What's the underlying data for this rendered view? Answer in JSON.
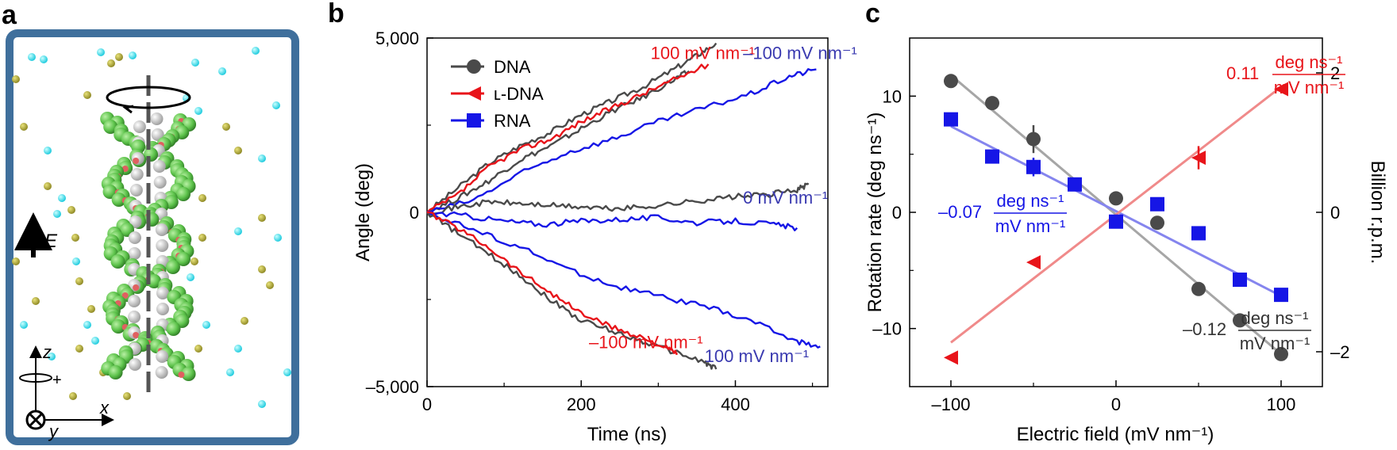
{
  "figure": {
    "panels": [
      {
        "letter": "a",
        "description_labels": {
          "field": "E",
          "z": "z",
          "x": "x",
          "y": "y",
          "plus": "+"
        }
      },
      {
        "letter": "b",
        "chart_data_ref": 0
      },
      {
        "letter": "c",
        "chart_data_ref": 1
      }
    ]
  },
  "chart_data": [
    {
      "type": "line",
      "xlabel": "Time (ns)",
      "ylabel": "Angle (deg)",
      "xlim": [
        0,
        520
      ],
      "ylim": [
        -5000,
        5000
      ],
      "xticks": [
        0,
        200,
        400
      ],
      "xtick_labels": [
        "0",
        "200",
        "400"
      ],
      "yticks": [
        -5000,
        0,
        5000
      ],
      "ytick_labels": [
        "–5,000",
        "0",
        "5,000"
      ],
      "legend": {
        "placement": "top-left",
        "entries": [
          {
            "label": "DNA",
            "color": "#4a4a4a",
            "marker": "circle"
          },
          {
            "label": "ʟ-DNA",
            "color": "#e8141a",
            "marker": "triangle-left"
          },
          {
            "label": "RNA",
            "color": "#1616e6",
            "marker": "square"
          }
        ]
      },
      "series": [
        {
          "name": "DNA +100",
          "color": "#4a4a4a",
          "x": [
            0,
            40,
            80,
            120,
            160,
            200,
            240,
            280,
            320,
            350,
            375
          ],
          "y": [
            0,
            700,
            1400,
            1900,
            2300,
            2800,
            3200,
            3600,
            4100,
            4500,
            4850
          ]
        },
        {
          "name": "DNA +100 b",
          "color": "#4a4a4a",
          "x": [
            0,
            40,
            80,
            120,
            160,
            200,
            240,
            280,
            320,
            340
          ],
          "y": [
            0,
            400,
            900,
            1500,
            1900,
            2400,
            2900,
            3300,
            3800,
            4050
          ]
        },
        {
          "name": "L-DNA -100",
          "color": "#e8141a",
          "x": [
            0,
            40,
            80,
            120,
            160,
            200,
            240,
            280,
            320,
            365
          ],
          "y": [
            0,
            500,
            1300,
            1800,
            2100,
            2600,
            3000,
            3400,
            3800,
            4250
          ]
        },
        {
          "name": "RNA -100",
          "color": "#1616e6",
          "x": [
            0,
            60,
            120,
            180,
            240,
            300,
            360,
            420,
            470,
            505
          ],
          "y": [
            0,
            350,
            1100,
            1700,
            2100,
            2600,
            3000,
            3400,
            3900,
            4100
          ]
        },
        {
          "name": "DNA 0",
          "color": "#4a4a4a",
          "x": [
            0,
            40,
            80,
            120,
            160,
            200,
            240,
            280,
            320,
            360,
            400,
            440,
            480,
            495
          ],
          "y": [
            0,
            150,
            300,
            250,
            200,
            150,
            100,
            150,
            250,
            350,
            450,
            500,
            650,
            800
          ]
        },
        {
          "name": "RNA 0",
          "color": "#1616e6",
          "x": [
            0,
            50,
            100,
            150,
            200,
            250,
            300,
            350,
            400,
            450,
            480
          ],
          "y": [
            0,
            -100,
            -250,
            -350,
            -250,
            -200,
            -150,
            -300,
            -250,
            -350,
            -450
          ]
        },
        {
          "name": "RNA +100",
          "color": "#1616e6",
          "x": [
            0,
            60,
            120,
            180,
            240,
            300,
            360,
            420,
            480,
            510
          ],
          "y": [
            0,
            -500,
            -1000,
            -1600,
            -2100,
            -2400,
            -2700,
            -3100,
            -3700,
            -3850
          ]
        },
        {
          "name": "DNA -100",
          "color": "#4a4a4a",
          "x": [
            0,
            40,
            80,
            120,
            160,
            200,
            240,
            280,
            320,
            360,
            375
          ],
          "y": [
            0,
            -600,
            -1200,
            -1800,
            -2500,
            -3100,
            -3400,
            -3700,
            -4000,
            -4300,
            -4500
          ]
        },
        {
          "name": "L-DNA +100",
          "color": "#e8141a",
          "x": [
            0,
            40,
            80,
            120,
            160,
            200,
            240,
            280,
            310,
            325
          ],
          "y": [
            0,
            -450,
            -1000,
            -1700,
            -2300,
            -2900,
            -3300,
            -3600,
            -3900,
            -4050
          ]
        }
      ],
      "annotations": [
        {
          "text": "100 mV nm⁻¹",
          "color": "#e8141a",
          "at_data": [
            290,
            4400
          ]
        },
        {
          "text": "–100 mV nm⁻¹",
          "color": "#3a3ab0",
          "at_data": [
            410,
            4400
          ]
        },
        {
          "text": "0 mV nm⁻¹",
          "color": "#3a3ab0",
          "at_data": [
            410,
            250
          ]
        },
        {
          "text": "–100 mV nm⁻¹",
          "color": "#e8141a",
          "at_data": [
            210,
            -3900
          ]
        },
        {
          "text": "100 mV nm⁻¹",
          "color": "#3a3ab0",
          "at_data": [
            360,
            -4300
          ]
        }
      ]
    },
    {
      "type": "scatter",
      "xlabel": "Electric field (mV nm⁻¹)",
      "ylabel": "Rotation rate (deg ns⁻¹)",
      "y2label": "Billion r.p.m.",
      "xlim": [
        -125,
        125
      ],
      "ylim": [
        -15,
        15
      ],
      "y2lim": [
        -2.5,
        2.5
      ],
      "xticks": [
        -100,
        0,
        100
      ],
      "xtick_labels": [
        "–100",
        "0",
        "100"
      ],
      "yticks": [
        -10,
        0,
        10
      ],
      "ytick_labels": [
        "–10",
        "0",
        "10"
      ],
      "y2ticks": [
        -2,
        0,
        2
      ],
      "y2tick_labels": [
        "–2",
        "0",
        "2"
      ],
      "series": [
        {
          "name": "DNA",
          "color": "#4a4a4a",
          "marker": "circle",
          "x": [
            -100,
            -75,
            -50,
            0,
            25,
            50,
            75,
            100
          ],
          "y": [
            11.3,
            9.4,
            6.3,
            1.2,
            -0.9,
            -6.6,
            -9.3,
            -12.2
          ],
          "errors": [
            0,
            0,
            1.2,
            0,
            0,
            0,
            0,
            0
          ]
        },
        {
          "name": "RNA",
          "color": "#1616e6",
          "marker": "square",
          "x": [
            -100,
            -75,
            -50,
            -25,
            0,
            25,
            50,
            75,
            100
          ],
          "y": [
            8.0,
            4.8,
            3.9,
            2.4,
            -0.8,
            0.7,
            -1.8,
            -5.8,
            -7.1
          ],
          "errors": [
            0,
            0,
            0.8,
            0,
            0,
            0,
            0,
            0,
            0
          ]
        },
        {
          "name": "L-DNA",
          "color": "#e8141a",
          "marker": "triangle-left",
          "x": [
            -100,
            -50,
            50,
            100
          ],
          "y": [
            -12.5,
            -4.3,
            4.7,
            10.6
          ],
          "errors": [
            0,
            0,
            1.0,
            0
          ]
        }
      ],
      "fits": [
        {
          "name": "DNA fit",
          "color": "#a6a6a6",
          "slope": -0.12,
          "x": [
            -100,
            100
          ],
          "y": [
            11.8,
            -12.2
          ]
        },
        {
          "name": "RNA fit",
          "color": "#8585ee",
          "slope": -0.07,
          "x": [
            -100,
            100
          ],
          "y": [
            7.4,
            -7.2
          ]
        },
        {
          "name": "L-DNA fit",
          "color": "#f08a8a",
          "slope": 0.11,
          "x": [
            -100,
            100
          ],
          "y": [
            -11.2,
            10.8
          ]
        }
      ],
      "annotations": [
        {
          "prefix": "0.11",
          "numerator": "deg ns⁻¹",
          "denominator": "mV nm⁻¹",
          "color": "#e8141a"
        },
        {
          "prefix": "–0.07",
          "numerator": "deg ns⁻¹",
          "denominator": "mV nm⁻¹",
          "color": "#1616e6"
        },
        {
          "prefix": "–0.12",
          "numerator": "deg ns⁻¹",
          "denominator": "mV nm⁻¹",
          "color": "#333333"
        }
      ]
    }
  ]
}
